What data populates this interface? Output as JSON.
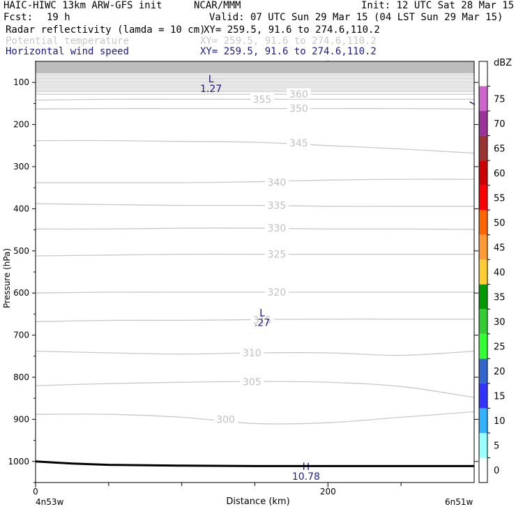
{
  "header": {
    "model": "HAIC-HIWC 13km ARW-GFS init",
    "org": "NCAR/MMM",
    "init": "Init: 12 UTC Sat 28 Mar 15",
    "fcst_label": "Fcst:",
    "fcst_value": "19 h",
    "valid": "Valid: 07 UTC Sun 29 Mar 15 (04 LST Sun 29 Mar 15)"
  },
  "fields": [
    {
      "name": "Radar reflectivity (lamda = 10 cm)",
      "xy": "XY= 259.5, 91.6 to 274.6,110.2",
      "color": "#000000"
    },
    {
      "name": "Potential temperature",
      "xy": "XY= 259.5, 91.6 to 274.6,110.2",
      "color": "#c8c8c8"
    },
    {
      "name": "Horizontal wind speed",
      "xy": "XY= 259.5, 91.6 to 274.6,110.2",
      "color": "#1a1a80"
    }
  ],
  "chart_data": {
    "type": "cross-section contour",
    "xlabel": "Distance (km)",
    "ylabel": "Pressure (hPa)",
    "xlim": [
      0,
      300
    ],
    "ylim": [
      1050,
      50
    ],
    "x_ticks": [
      "0",
      "200"
    ],
    "x_tick_values": [
      0,
      200
    ],
    "x_minor_values": [
      50,
      100,
      150,
      250
    ],
    "y_ticks": [
      100,
      200,
      300,
      400,
      500,
      600,
      700,
      800,
      900,
      1000
    ],
    "x_end_labels": {
      "left": "4n53w",
      "right": "6n51w"
    },
    "theta_contours": [
      {
        "label": "300",
        "x": [
          0,
          50,
          100,
          150,
          200,
          250,
          300
        ],
        "p": [
          888,
          888,
          895,
          910,
          908,
          895,
          882
        ]
      },
      {
        "label": "305",
        "x": [
          0,
          50,
          100,
          150,
          200,
          250,
          300
        ],
        "p": [
          820,
          815,
          812,
          810,
          812,
          822,
          848
        ]
      },
      {
        "label": "310",
        "x": [
          0,
          50,
          100,
          150,
          200,
          250,
          300
        ],
        "p": [
          738,
          742,
          745,
          742,
          742,
          748,
          738
        ]
      },
      {
        "label": "315",
        "x": [
          0,
          50,
          100,
          150,
          200,
          250,
          300
        ],
        "p": [
          668,
          665,
          665,
          663,
          662,
          662,
          662
        ]
      },
      {
        "label": "320",
        "x": [
          0,
          50,
          100,
          150,
          200,
          250,
          300
        ],
        "p": [
          600,
          598,
          598,
          598,
          598,
          598,
          598
        ]
      },
      {
        "label": "325",
        "x": [
          0,
          50,
          100,
          150,
          200,
          250,
          300
        ],
        "p": [
          512,
          510,
          508,
          508,
          508,
          508,
          508
        ]
      },
      {
        "label": "330",
        "x": [
          0,
          50,
          100,
          150,
          200,
          250,
          300
        ],
        "p": [
          448,
          448,
          446,
          446,
          448,
          448,
          449
        ]
      },
      {
        "label": "335",
        "x": [
          0,
          50,
          100,
          150,
          200,
          250,
          300
        ],
        "p": [
          388,
          390,
          392,
          392,
          394,
          394,
          394
        ]
      },
      {
        "label": "340",
        "x": [
          0,
          50,
          100,
          150,
          200,
          250,
          300
        ],
        "p": [
          338,
          338,
          338,
          336,
          332,
          330,
          330
        ]
      },
      {
        "label": "345",
        "x": [
          0,
          50,
          100,
          150,
          200,
          250,
          300
        ],
        "p": [
          238,
          238,
          240,
          242,
          250,
          258,
          268
        ]
      },
      {
        "label": "350",
        "x": [
          0,
          50,
          100,
          150,
          200,
          250,
          300
        ],
        "p": [
          163,
          162,
          162,
          162,
          162,
          162,
          163
        ]
      },
      {
        "label": "355",
        "x": [
          0,
          50,
          100,
          150,
          200,
          250,
          300
        ],
        "p": [
          142,
          140,
          140,
          140,
          140,
          140,
          140
        ]
      },
      {
        "label": "360",
        "x": [
          0,
          50,
          100,
          150,
          200,
          250,
          300
        ],
        "p": [
          128,
          128,
          128,
          128,
          128,
          128,
          128
        ]
      }
    ],
    "theta_labels": [
      {
        "text": "360",
        "x": 180,
        "p": 128
      },
      {
        "text": "355",
        "x": 155,
        "p": 140
      },
      {
        "text": "350",
        "x": 180,
        "p": 162
      },
      {
        "text": "345",
        "x": 180,
        "p": 244
      },
      {
        "text": "340",
        "x": 165,
        "p": 337
      },
      {
        "text": "335",
        "x": 165,
        "p": 392
      },
      {
        "text": "330",
        "x": 165,
        "p": 446
      },
      {
        "text": "325",
        "x": 165,
        "p": 508
      },
      {
        "text": "320",
        "x": 165,
        "p": 598
      },
      {
        "text": "315",
        "x": 155,
        "p": 664
      },
      {
        "text": "310",
        "x": 148,
        "p": 742
      },
      {
        "text": "305",
        "x": 148,
        "p": 811
      },
      {
        "text": "300",
        "x": 130,
        "p": 900
      }
    ],
    "wind_annotations": [
      {
        "letter": "L",
        "value": "1.27",
        "x": 120,
        "p": 70
      },
      {
        "letter": "L",
        "value": ".27",
        "x": 155,
        "p": 625
      },
      {
        "letter": "H",
        "value": "10.78",
        "x": 185,
        "p": 990
      }
    ],
    "wind_contour": {
      "x": [
        298,
        297,
        300,
        300
      ],
      "p": [
        148,
        146,
        152,
        150
      ]
    },
    "terrain": {
      "x": [
        0,
        25,
        50,
        100,
        150,
        200,
        250,
        300
      ],
      "p": [
        1000,
        1005,
        1008,
        1010,
        1011,
        1011,
        1011,
        1011
      ]
    },
    "colorbar": {
      "unit": "dBZ",
      "labels": [
        "0",
        "5",
        "10",
        "15",
        "20",
        "25",
        "30",
        "35",
        "40",
        "45",
        "50",
        "55",
        "60",
        "65",
        "70",
        "75"
      ],
      "colors": [
        "#ffffff",
        "#99ffff",
        "#33b2ff",
        "#3333ff",
        "#3366cc",
        "#33ff33",
        "#33cc33",
        "#009900",
        "#ffcc33",
        "#ff9933",
        "#ff6600",
        "#ff0000",
        "#cc0000",
        "#993333",
        "#993399",
        "#cc66cc",
        "#ffffff"
      ]
    }
  }
}
